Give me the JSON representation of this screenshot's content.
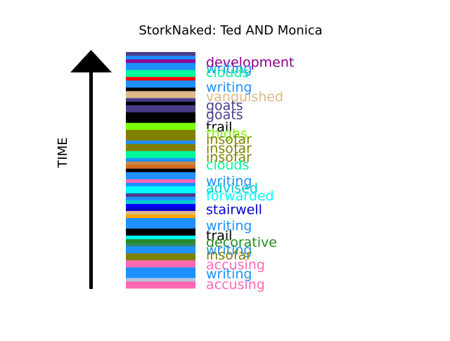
{
  "chart_data": {
    "type": "bar",
    "title": "StorkNaked: Ted AND Monica",
    "ylabel": "TIME",
    "stack": [
      {
        "color": "#FF69B4"
      },
      {
        "color": "#FF69B4"
      },
      {
        "color": "#B0C4DE"
      },
      {
        "color": "#1E90FF"
      },
      {
        "color": "#1E90FF"
      },
      {
        "color": "#1E90FF"
      },
      {
        "color": "#FF69B4"
      },
      {
        "color": "#FF69B4"
      },
      {
        "color": "#808000"
      },
      {
        "color": "#808000"
      },
      {
        "color": "#1E90FF"
      },
      {
        "color": "#1E90FF"
      },
      {
        "color": "#2E8B57"
      },
      {
        "color": "#228B22"
      },
      {
        "color": "#00FFFF"
      },
      {
        "color": "#000000"
      },
      {
        "color": "#000000"
      },
      {
        "color": "#1E90FF"
      },
      {
        "color": "#1E90FF"
      },
      {
        "color": "#1E90FF"
      },
      {
        "color": "#FFA500"
      },
      {
        "color": "#DEB887"
      },
      {
        "color": "#0000CD"
      },
      {
        "color": "#0000FF"
      },
      {
        "color": "#00CED1"
      },
      {
        "color": "#1E90FF"
      },
      {
        "color": "#483D8B"
      },
      {
        "color": "#00FFFF"
      },
      {
        "color": "#00FFFF"
      },
      {
        "color": "#1E90FF"
      },
      {
        "color": "#FF69B4"
      },
      {
        "color": "#1E90FF"
      },
      {
        "color": "#1E90FF"
      },
      {
        "color": "#000000"
      },
      {
        "color": "#D2691E"
      },
      {
        "color": "#CD853F"
      },
      {
        "color": "#1E90FF"
      },
      {
        "color": "#00FA9A"
      },
      {
        "color": "#00FA9A"
      },
      {
        "color": "#808000"
      },
      {
        "color": "#808000"
      },
      {
        "color": "#1E90FF"
      },
      {
        "color": "#808000"
      },
      {
        "color": "#808000"
      },
      {
        "color": "#808000"
      },
      {
        "color": "#7CFC00"
      },
      {
        "color": "#7CFC00"
      },
      {
        "color": "#000000"
      },
      {
        "color": "#000000"
      },
      {
        "color": "#000000"
      },
      {
        "color": "#483D8B"
      },
      {
        "color": "#483D8B"
      },
      {
        "color": "#000000"
      },
      {
        "color": "#483D8B"
      },
      {
        "color": "#DEB887"
      },
      {
        "color": "#DEB887"
      },
      {
        "color": "#000000"
      },
      {
        "color": "#1E90FF"
      },
      {
        "color": "#1E90FF"
      },
      {
        "color": "#FF0000"
      },
      {
        "color": "#00FA9A"
      },
      {
        "color": "#00FA9A"
      },
      {
        "color": "#1E90FF"
      },
      {
        "color": "#1E90FF"
      },
      {
        "color": "#8B008B"
      },
      {
        "color": "#1E90FF"
      },
      {
        "color": "#483D8B"
      }
    ],
    "labels": [
      {
        "text": "development",
        "color": "#8B008B",
        "value": 0.958
      },
      {
        "text": "writing",
        "color": "#1E90FF",
        "value": 0.932
      },
      {
        "text": "clouds",
        "color": "#00FA9A",
        "value": 0.915
      },
      {
        "text": "writing",
        "color": "#1E90FF",
        "value": 0.852
      },
      {
        "text": "vanquished",
        "color": "#DEB887",
        "value": 0.812
      },
      {
        "text": "goats",
        "color": "#483D8B",
        "value": 0.775
      },
      {
        "text": "goats",
        "color": "#483D8B",
        "value": 0.736
      },
      {
        "text": "trail",
        "color": "#000000",
        "value": 0.685
      },
      {
        "text": "thighs",
        "color": "#7CFC00",
        "value": 0.656
      },
      {
        "text": "insofar",
        "color": "#808000",
        "value": 0.632
      },
      {
        "text": "insofar",
        "color": "#808000",
        "value": 0.594
      },
      {
        "text": "insofar",
        "color": "#808000",
        "value": 0.556
      },
      {
        "text": "clouds",
        "color": "#00FA9A",
        "value": 0.524
      },
      {
        "text": "writing",
        "color": "#1E90FF",
        "value": 0.455
      },
      {
        "text": "advised",
        "color": "#00CED1",
        "value": 0.425
      },
      {
        "text": "forwarded",
        "color": "#00FFFF",
        "value": 0.393
      },
      {
        "text": "stairwell",
        "color": "#0000CD",
        "value": 0.335
      },
      {
        "text": "writing",
        "color": "#1E90FF",
        "value": 0.266
      },
      {
        "text": "trail",
        "color": "#000000",
        "value": 0.225
      },
      {
        "text": "decorative",
        "color": "#228B22",
        "value": 0.196
      },
      {
        "text": "writing",
        "color": "#1E90FF",
        "value": 0.163
      },
      {
        "text": "insofar",
        "color": "#808000",
        "value": 0.143
      },
      {
        "text": "accusing",
        "color": "#FF69B4",
        "value": 0.101
      },
      {
        "text": "writing",
        "color": "#1E90FF",
        "value": 0.063
      },
      {
        "text": "accusing",
        "color": "#FF69B4",
        "value": 0.018
      }
    ]
  }
}
